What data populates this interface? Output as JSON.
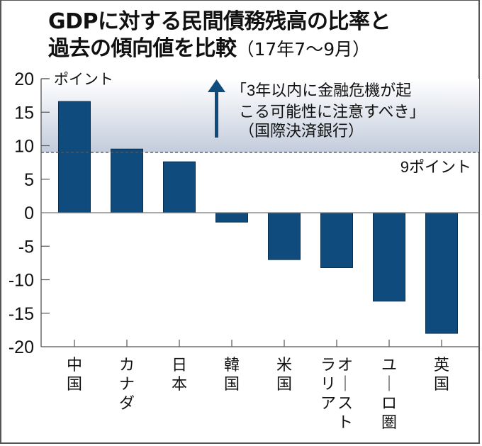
{
  "title_line1": "GDPに対する民間債務残高の比率と",
  "title_line2_main": "過去の傾向値を比較",
  "title_line2_sub": "（17年7〜9月）",
  "chart_data": {
    "type": "bar",
    "title": "GDPに対する民間債務残高の比率と過去の傾向値を比較（17年7〜9月）",
    "ylabel": "ポイント",
    "xlabel": "",
    "categories": [
      "中国",
      "カナダ",
      "日本",
      "韓国",
      "米国",
      "オーストラリア",
      "ユーロ圏",
      "英国"
    ],
    "category_label_columns": [
      [
        "中国"
      ],
      [
        "カナダ"
      ],
      [
        "日本"
      ],
      [
        "韓国"
      ],
      [
        "米国"
      ],
      [
        "ラリア",
        "オースト"
      ],
      [
        "ユーロ圏"
      ],
      [
        "英国"
      ]
    ],
    "values": [
      16.6,
      9.5,
      7.6,
      -1.4,
      -7.0,
      -8.2,
      -13.2,
      -18.0
    ],
    "ylim": [
      -20,
      20
    ],
    "yticks": [
      20,
      15,
      10,
      5,
      0,
      -5,
      -10,
      -15,
      -20
    ],
    "grid": false,
    "bar_color": "#0f4c7d",
    "threshold": {
      "value": 9,
      "label": "9ポイント",
      "style": "dashed",
      "shaded_above": true
    },
    "annotation": {
      "lines": [
        "「3年以内に金融危機が起",
        "こる可能性に注意すべき」",
        "（国際決済銀行）"
      ],
      "arrow": "up"
    }
  }
}
